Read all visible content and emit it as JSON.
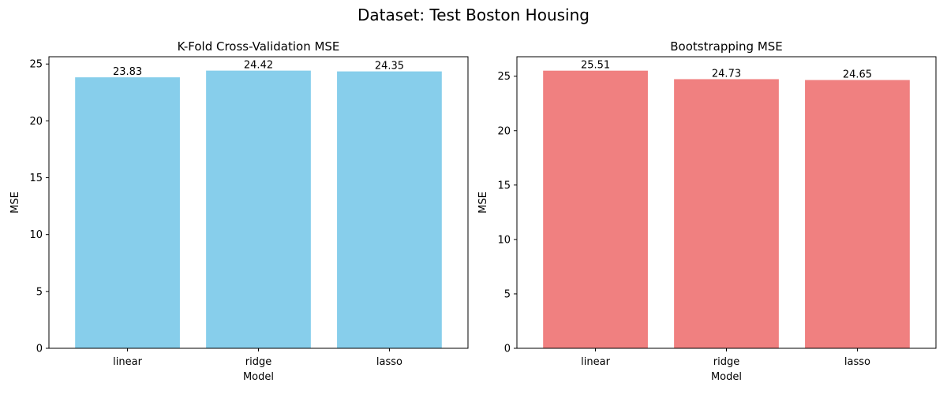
{
  "suptitle": "Dataset: Test Boston Housing",
  "chart_data": [
    {
      "type": "bar",
      "title": "K-Fold Cross-Validation MSE",
      "xlabel": "Model",
      "ylabel": "MSE",
      "categories": [
        "linear",
        "ridge",
        "lasso"
      ],
      "values": [
        23.83,
        24.42,
        24.35
      ],
      "value_labels": [
        "23.83",
        "24.42",
        "24.35"
      ],
      "ylim": [
        0,
        25.64
      ],
      "yticks": [
        0,
        5,
        10,
        15,
        20,
        25
      ],
      "ytick_labels": [
        "0",
        "5",
        "10",
        "15",
        "20",
        "25"
      ],
      "color": "#87ceeb",
      "grid": false
    },
    {
      "type": "bar",
      "title": "Bootstrapping MSE",
      "xlabel": "Model",
      "ylabel": "MSE",
      "categories": [
        "linear",
        "ridge",
        "lasso"
      ],
      "values": [
        25.51,
        24.73,
        24.65
      ],
      "value_labels": [
        "25.51",
        "24.73",
        "24.65"
      ],
      "ylim": [
        0,
        26.79
      ],
      "yticks": [
        0,
        5,
        10,
        15,
        20,
        25
      ],
      "ytick_labels": [
        "0",
        "5",
        "10",
        "15",
        "20",
        "25"
      ],
      "color": "#f08080",
      "grid": false
    }
  ]
}
